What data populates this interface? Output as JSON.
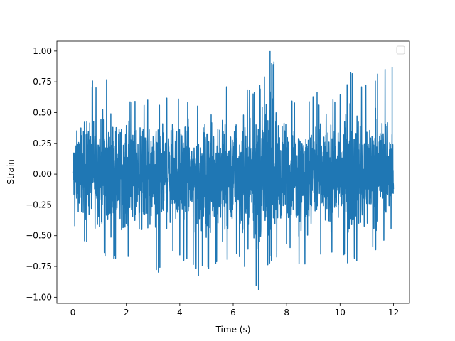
{
  "chart_data": {
    "type": "line",
    "title": "",
    "xlabel": "Time (s)",
    "ylabel": "Strain",
    "xlim": [
      -0.6,
      12.6
    ],
    "ylim": [
      -1.05,
      1.08
    ],
    "x_ticks": [
      0,
      2,
      4,
      6,
      8,
      10,
      12
    ],
    "x_tick_labels": [
      "0",
      "2",
      "4",
      "6",
      "8",
      "10",
      "12"
    ],
    "y_ticks": [
      1.0,
      0.75,
      0.5,
      0.25,
      0.0,
      -0.25,
      -0.5,
      -0.75,
      -1.0
    ],
    "y_tick_labels": [
      "1.00",
      "0.75",
      "0.50",
      "0.25",
      "0.00",
      "−0.25",
      "−0.50",
      "−0.75",
      "−1.00"
    ],
    "grid": false,
    "legend": {
      "placement": "top-right",
      "entries": []
    },
    "series": [
      {
        "color": "#1f77b4",
        "x_range": [
          0,
          12
        ],
        "envelope": {
          "x": [
            0.0,
            0.2,
            0.6,
            1.0,
            1.3,
            2.0,
            2.8,
            3.2,
            3.7,
            4.7,
            5.3,
            6.2,
            6.95,
            7.38,
            8.0,
            8.6,
            9.2,
            9.8,
            10.4,
            10.9,
            11.4,
            11.95
          ],
          "upper": [
            0.38,
            0.62,
            0.78,
            0.72,
            0.78,
            0.6,
            0.62,
            0.55,
            0.7,
            0.55,
            0.72,
            0.72,
            0.7,
            1.0,
            0.65,
            0.62,
            0.7,
            0.62,
            0.83,
            0.72,
            0.85,
            0.87
          ],
          "lower": [
            -0.44,
            -0.48,
            -0.6,
            -0.68,
            -0.7,
            -0.7,
            -0.75,
            -0.8,
            -0.62,
            -0.83,
            -0.8,
            -0.68,
            -0.94,
            -0.72,
            -0.62,
            -0.78,
            -0.72,
            -0.7,
            -0.73,
            -0.68,
            -0.62,
            -0.44
          ]
        }
      }
    ]
  }
}
